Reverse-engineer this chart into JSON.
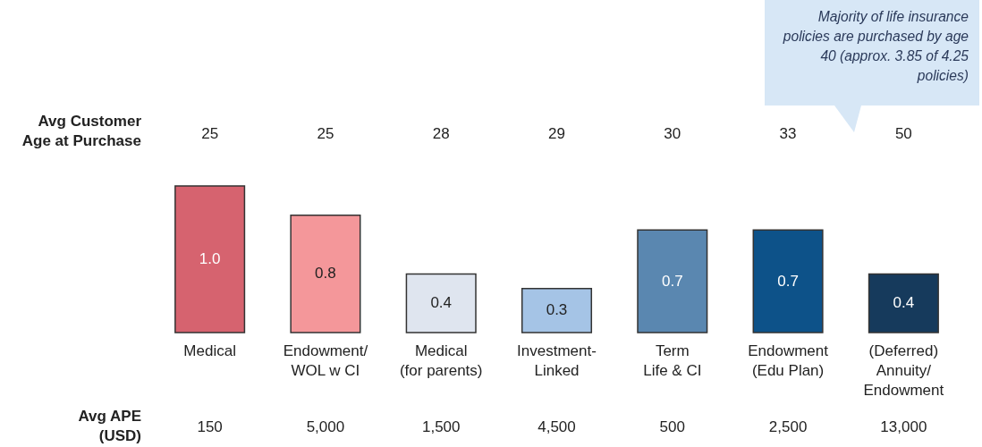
{
  "chart_data": {
    "type": "bar",
    "categories": [
      "Medical",
      "Endowment/\nWOL w CI",
      "Medical\n(for parents)",
      "Investment-\nLinked",
      "Term\nLife & CI",
      "Endowment\n(Edu Plan)",
      "(Deferred)\nAnnuity/\nEndowment"
    ],
    "values": [
      1.0,
      0.8,
      0.4,
      0.3,
      0.7,
      0.7,
      0.4
    ],
    "colors": [
      "#d6636f",
      "#f4979a",
      "#dfe5ef",
      "#a5c4e6",
      "#5a87b0",
      "#0d5289",
      "#163a5c"
    ],
    "value_labels": [
      "1.0",
      "0.8",
      "0.4",
      "0.3",
      "0.7",
      "0.7",
      "0.4"
    ],
    "annotations": [
      "Majority of life insurance policies are purchased by age 40 (approx. 3.85 of 4.25 policies)",
      "Avg Customer\nAge at Purchase",
      "25",
      "25",
      "28",
      "29",
      "30",
      "33",
      "50",
      "Avg APE\n(USD)",
      "150",
      "5,000",
      "1,500",
      "4,500",
      "500",
      "2,500",
      "13,000"
    ]
  }
}
